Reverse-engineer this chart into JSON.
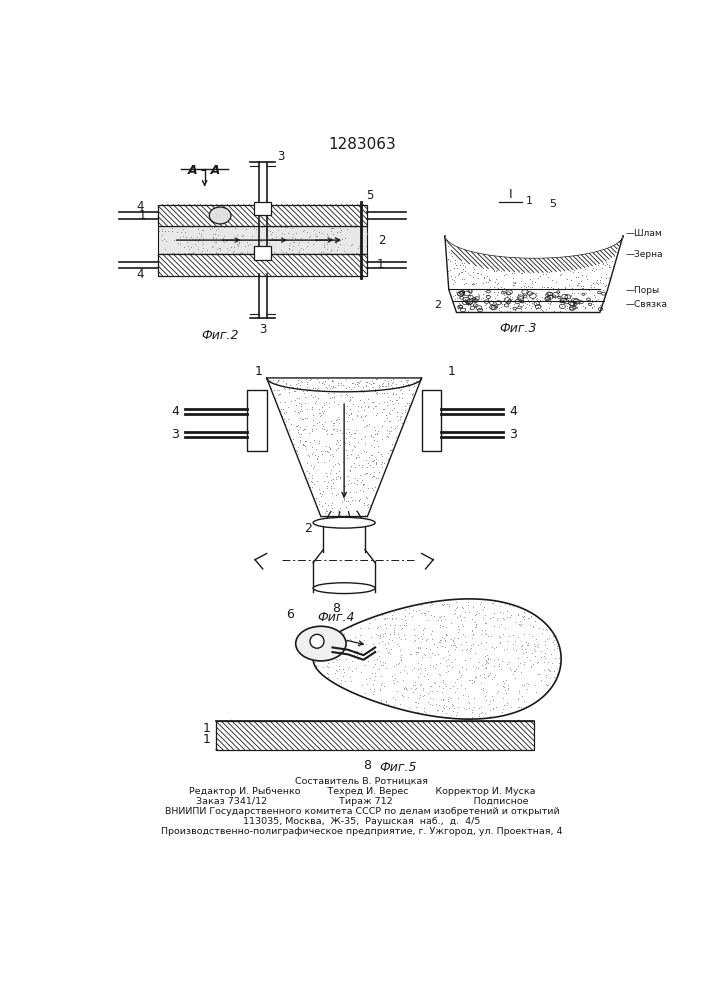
{
  "title": "1283063",
  "section_label": "А - А",
  "fig_labels": [
    "Фиг.2",
    "Фиг.3",
    "Фиг.4",
    "Фиг.5"
  ],
  "fig3_labels": [
    "Шлам",
    "Зерна",
    "Поры",
    "Связка"
  ],
  "roman_I": "I",
  "footer_lines": [
    "Составитель В. Ротницкая",
    "Редактор И. Рыбченко         Техред И. Верес         Корректор И. Муска",
    "Заказ 7341/12                        Тираж 712                           Подписное",
    "ВНИИПИ Государственного комитета СССР по делам изобретений и открытий",
    "113035, Москва,  Ж-35,  Раушская  наб.,  д.  4/5",
    "Производственно-полиграфическое предприятие, г. Ужгород, ул. Проектная, 4"
  ],
  "bg_color": "#ffffff",
  "line_color": "#1a1a1a"
}
